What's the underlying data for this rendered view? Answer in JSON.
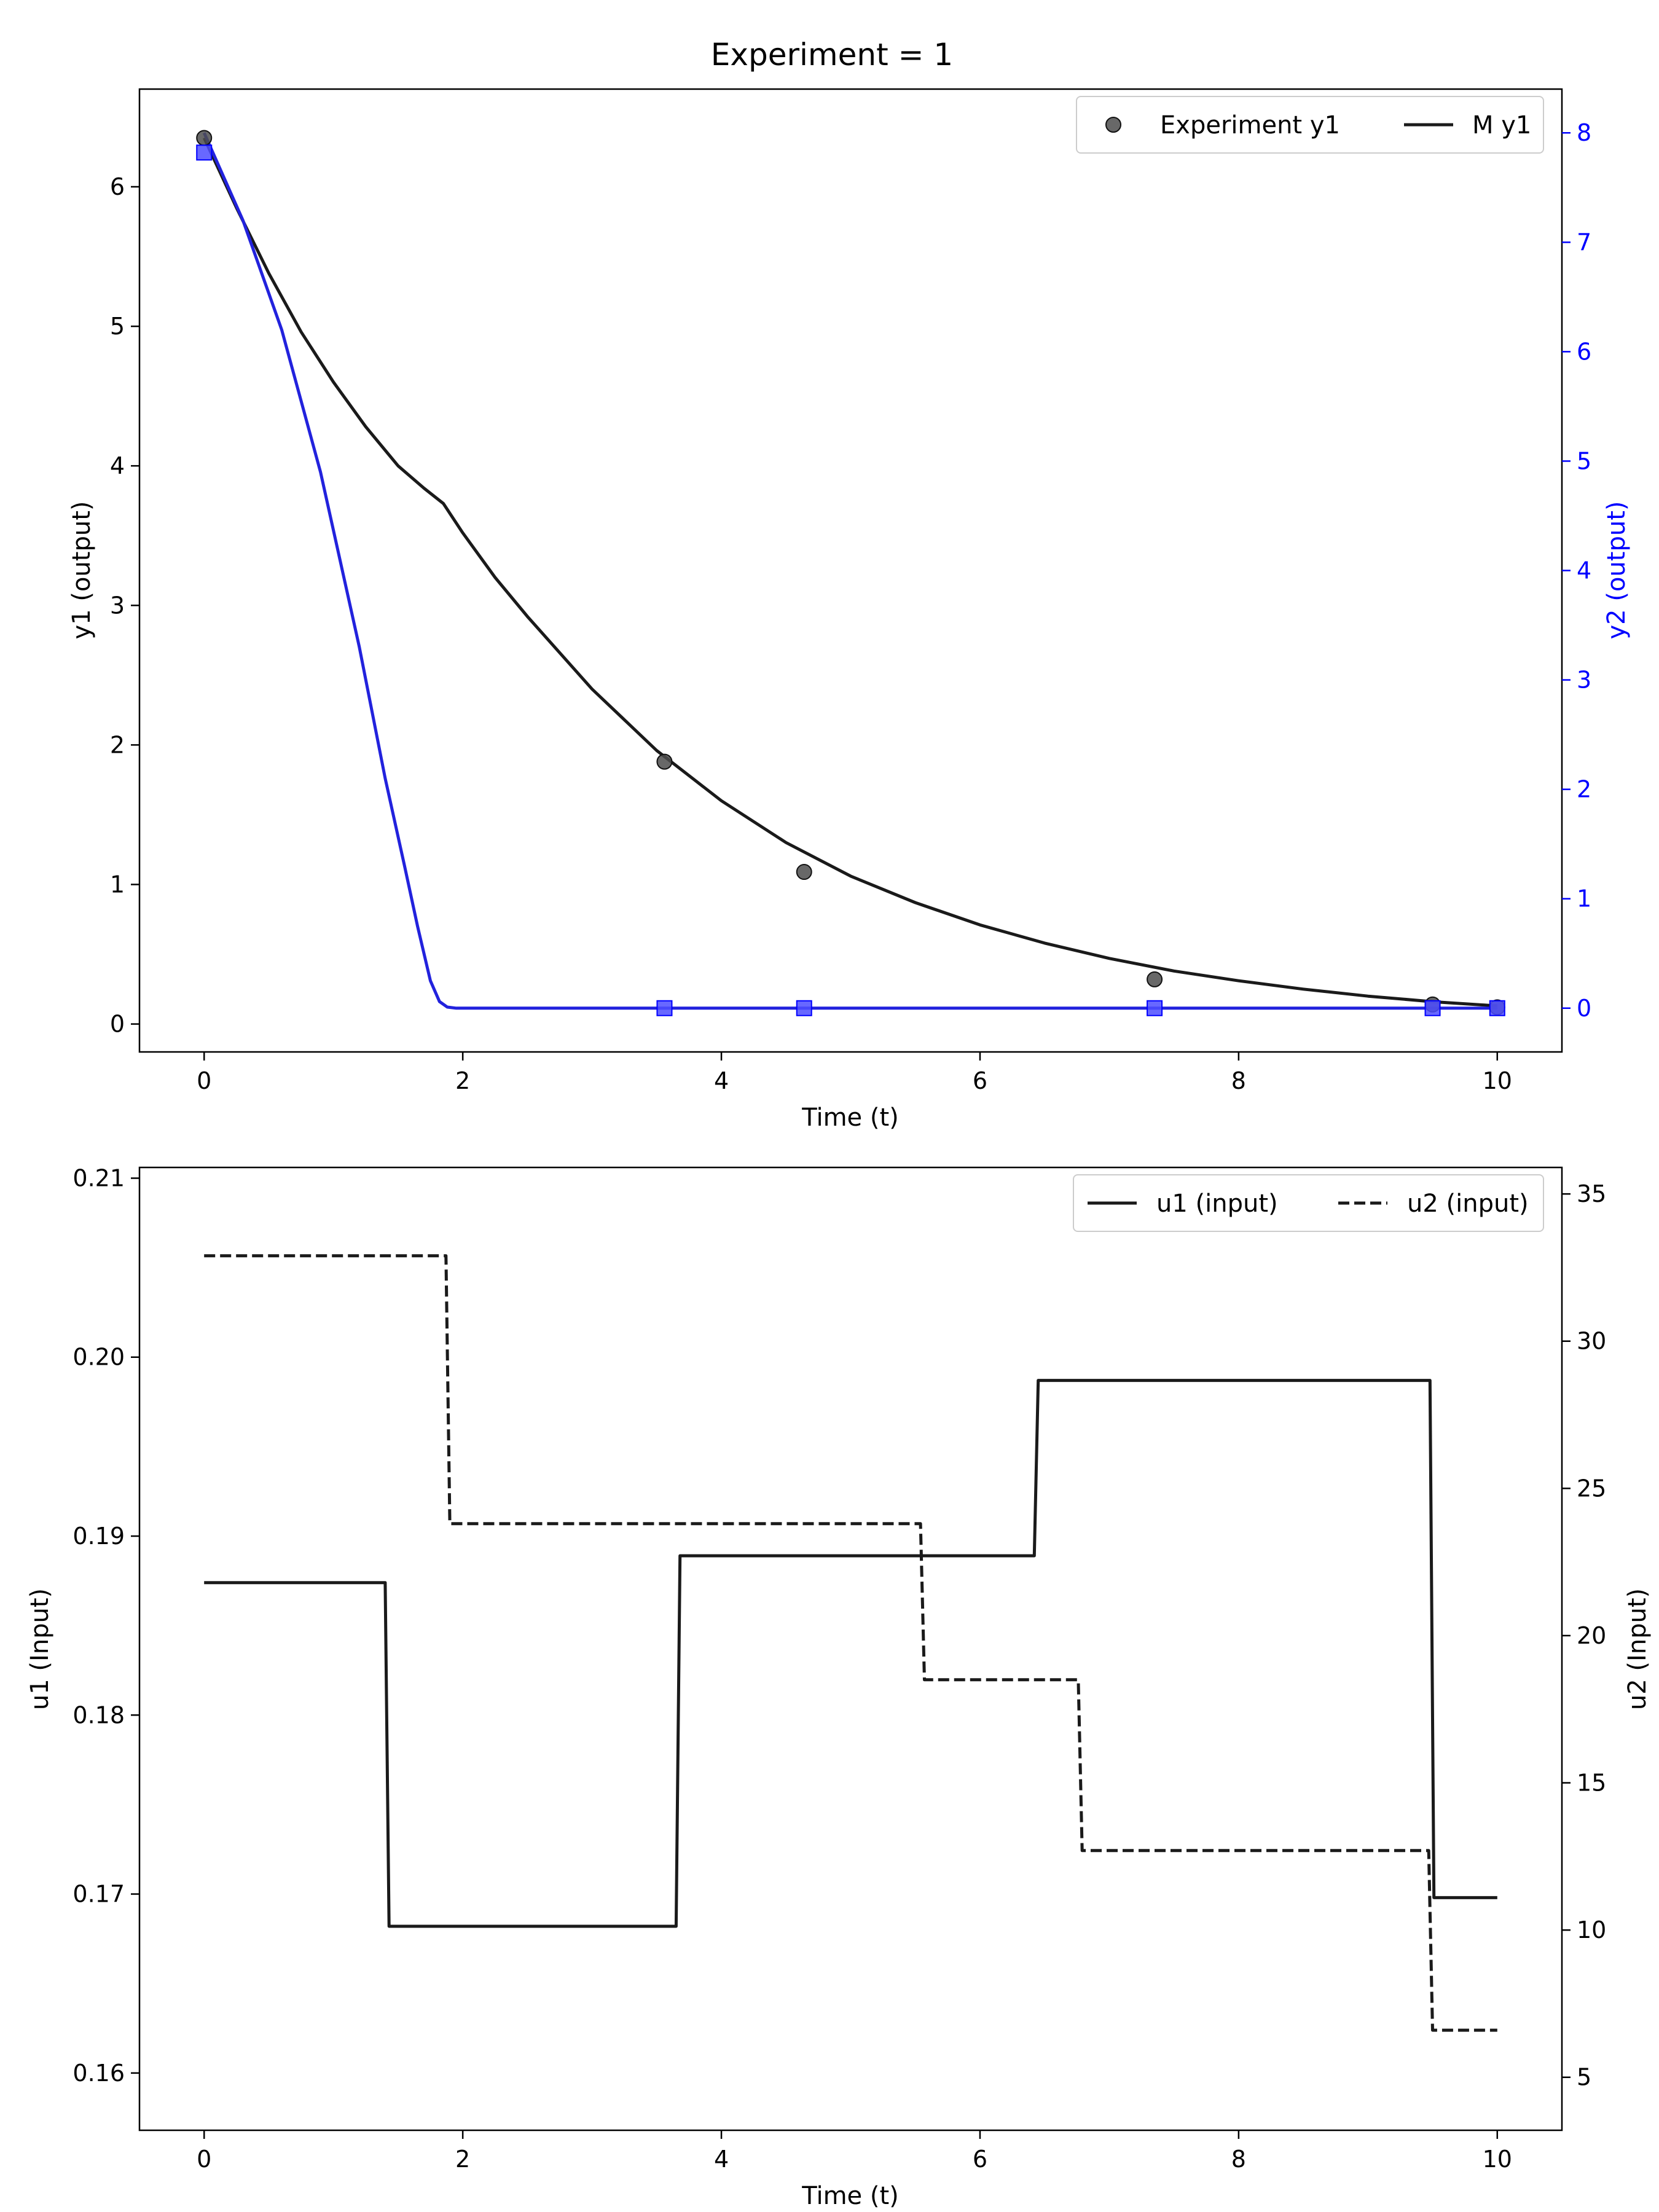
{
  "figure": {
    "title": "Experiment = 1"
  },
  "colors": {
    "black": "#1a1a1a",
    "blue": "#0000ff",
    "exp_marker": "#4d4d4d",
    "blue_marker": "#4d4dff",
    "model_line_blue": "#2222dd"
  },
  "chart_data": [
    {
      "type": "line",
      "xlabel": "Time (t)",
      "ylabel": "y1 (output)",
      "y2label": "y2 (output)",
      "xlim": [
        -0.5,
        10.5
      ],
      "ylim": [
        -0.2,
        6.7
      ],
      "y2lim": [
        -0.4,
        8.4
      ],
      "xticks": [
        0,
        2,
        4,
        6,
        8,
        10
      ],
      "yticks": [
        0,
        1,
        2,
        3,
        4,
        5,
        6
      ],
      "y2ticks": [
        0,
        1,
        2,
        3,
        4,
        5,
        6,
        7,
        8
      ],
      "legend": {
        "position": "top-right",
        "entries": [
          "Experiment y1",
          "M y1"
        ]
      },
      "series": [
        {
          "name": "Experiment y1",
          "kind": "scatter",
          "axis": "left",
          "x": [
            0,
            3.56,
            4.64,
            7.35,
            9.5,
            10
          ],
          "y": [
            6.35,
            1.88,
            1.09,
            0.32,
            0.14,
            0.12
          ]
        },
        {
          "name": "M y1",
          "kind": "line",
          "axis": "left",
          "x": [
            0,
            0.25,
            0.5,
            0.75,
            1.0,
            1.25,
            1.5,
            1.7,
            1.85,
            2.0,
            2.25,
            2.5,
            3.0,
            3.5,
            4.0,
            4.5,
            5.0,
            5.5,
            6.0,
            6.5,
            7.0,
            7.5,
            8.0,
            8.5,
            9.0,
            9.5,
            10.0
          ],
          "y": [
            6.35,
            5.85,
            5.38,
            4.96,
            4.6,
            4.28,
            4.0,
            3.84,
            3.73,
            3.52,
            3.2,
            2.92,
            2.4,
            1.96,
            1.6,
            1.3,
            1.06,
            0.87,
            0.71,
            0.58,
            0.47,
            0.38,
            0.31,
            0.25,
            0.2,
            0.16,
            0.13
          ]
        },
        {
          "kind": "scatter",
          "axis": "right",
          "x": [
            0,
            3.56,
            4.64,
            7.35,
            9.5,
            10
          ],
          "y": [
            7.82,
            0,
            0,
            0,
            0,
            0
          ]
        },
        {
          "kind": "line",
          "axis": "right",
          "x": [
            0,
            0.3,
            0.6,
            0.9,
            1.2,
            1.4,
            1.55,
            1.65,
            1.75,
            1.82,
            1.88,
            1.95,
            2.1,
            4.0,
            6.0,
            8.0,
            10.0
          ],
          "y": [
            8.0,
            7.2,
            6.2,
            4.9,
            3.3,
            2.1,
            1.3,
            0.75,
            0.25,
            0.06,
            0.01,
            0.0,
            0.0,
            0.0,
            0.0,
            0.0,
            0.0
          ]
        }
      ]
    },
    {
      "type": "line",
      "xlabel": "Time (t)",
      "ylabel": "u1 (Input)",
      "y2label": "u2 (Input)",
      "xlim": [
        -0.5,
        10.5
      ],
      "ylim": [
        0.1568,
        0.2106
      ],
      "y2lim": [
        3.2,
        35.9
      ],
      "xticks": [
        0,
        2,
        4,
        6,
        8,
        10
      ],
      "yticks": [
        0.16,
        0.17,
        0.18,
        0.19,
        0.2,
        0.21
      ],
      "y2ticks": [
        5,
        10,
        15,
        20,
        25,
        30,
        35
      ],
      "legend": {
        "position": "top-right",
        "entries": [
          "u1 (input)",
          "u2 (input)"
        ]
      },
      "series": [
        {
          "name": "u1 (input)",
          "kind": "line",
          "style": "solid",
          "axis": "left",
          "x": [
            0,
            1.4,
            1.43,
            3.65,
            3.68,
            6.42,
            6.45,
            9.48,
            9.51,
            10
          ],
          "y": [
            0.1874,
            0.1874,
            0.1682,
            0.1682,
            0.1889,
            0.1889,
            0.1987,
            0.1987,
            0.1698,
            0.1698
          ]
        },
        {
          "name": "u2 (input)",
          "kind": "line",
          "style": "dashed",
          "axis": "right",
          "x": [
            0,
            1.87,
            1.9,
            5.54,
            5.57,
            6.76,
            6.79,
            9.47,
            9.5,
            10
          ],
          "y": [
            32.9,
            32.9,
            23.8,
            23.8,
            18.5,
            18.5,
            12.7,
            12.7,
            6.6,
            6.6
          ]
        }
      ]
    }
  ]
}
